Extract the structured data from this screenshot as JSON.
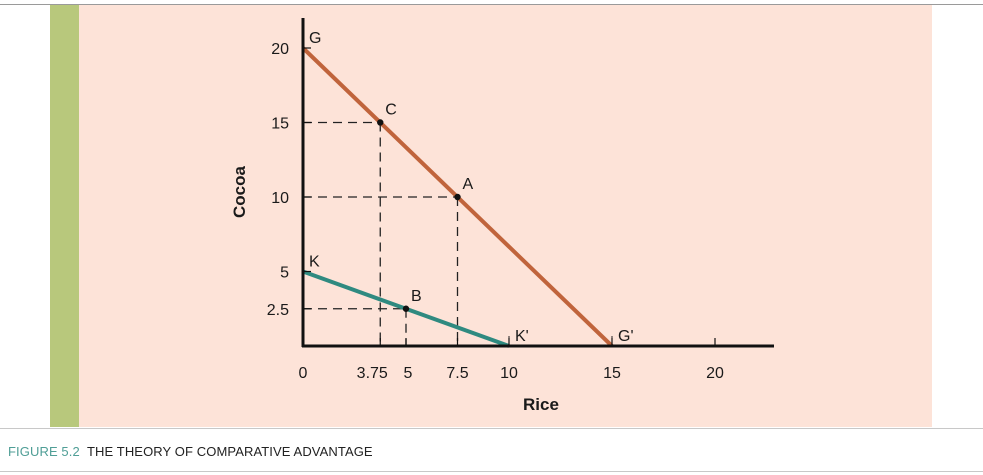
{
  "caption": {
    "figure": "FIGURE 5.2",
    "title": "THE THEORY OF COMPARATIVE ADVANTAGE"
  },
  "colors": {
    "panel": "#fde3d8",
    "accent_bar": "#b8c87c",
    "line_G": "#c0643c",
    "line_K": "#2f8a80",
    "caption_figure": "#4f9e96"
  },
  "chart_data": {
    "type": "line",
    "xlabel": "Rice",
    "ylabel": "Cocoa",
    "xlim": [
      0,
      23
    ],
    "ylim": [
      0,
      22
    ],
    "x_ticks": [
      {
        "value": 0,
        "label": "0"
      },
      {
        "value": 3.75,
        "label": "3.75"
      },
      {
        "value": 5,
        "label": "5"
      },
      {
        "value": 7.5,
        "label": "7.5"
      },
      {
        "value": 10,
        "label": "10"
      },
      {
        "value": 15,
        "label": "15"
      },
      {
        "value": 20,
        "label": "20"
      }
    ],
    "y_ticks": [
      {
        "value": 2.5,
        "label": "2.5"
      },
      {
        "value": 5,
        "label": "5"
      },
      {
        "value": 10,
        "label": "10"
      },
      {
        "value": 15,
        "label": "15"
      },
      {
        "value": 20,
        "label": "20"
      }
    ],
    "series": [
      {
        "color": "#c0643c",
        "points": [
          [
            0,
            20
          ],
          [
            15,
            0
          ]
        ],
        "end_labels": [
          "G",
          "G'"
        ]
      },
      {
        "color": "#2f8a80",
        "points": [
          [
            0,
            5
          ],
          [
            10,
            0
          ]
        ],
        "end_labels": [
          "K",
          "K'"
        ]
      }
    ],
    "points": [
      {
        "label": "C",
        "x": 3.75,
        "y": 15
      },
      {
        "label": "A",
        "x": 7.5,
        "y": 10
      },
      {
        "label": "B",
        "x": 5,
        "y": 2.5
      }
    ],
    "grid": false,
    "legend": "none"
  }
}
